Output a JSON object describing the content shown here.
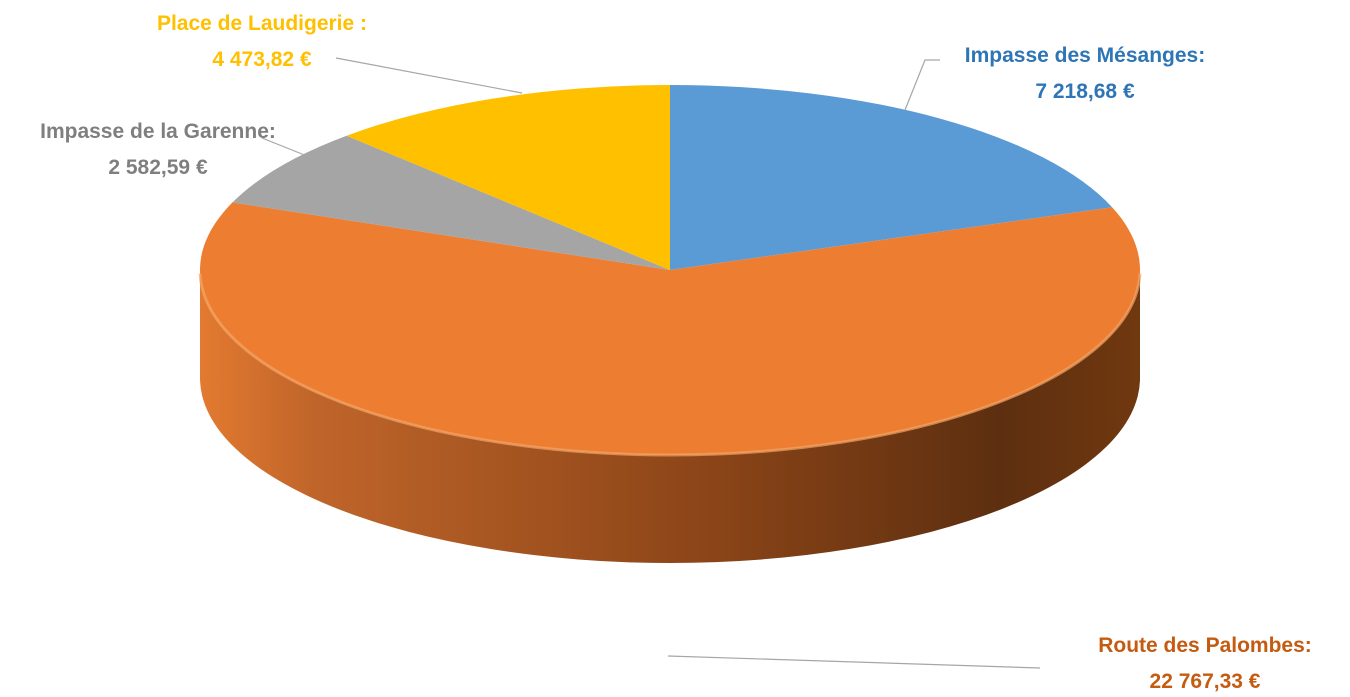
{
  "chart_data": {
    "type": "pie",
    "title": "",
    "slices": [
      {
        "label": "Impasse des Mésanges:",
        "value_text": "7 218,68 €",
        "value": 7218.68,
        "color": "#5b9bd5",
        "label_color": "#2e75b6"
      },
      {
        "label": "Route des Palombes:",
        "value_text": "22 767,33 €",
        "value": 22767.33,
        "color": "#ed7d31",
        "label_color": "#c55a11"
      },
      {
        "label": "Impasse de la Garenne:",
        "value_text": "2 582,59 €",
        "value": 2582.59,
        "color": "#a5a5a5",
        "label_color": "#7f7f7f"
      },
      {
        "label": "Place de Laudigerie :",
        "value_text": "4 473,82 €",
        "value": 4473.82,
        "color": "#ffc000",
        "label_color": "#ffc000"
      }
    ]
  }
}
